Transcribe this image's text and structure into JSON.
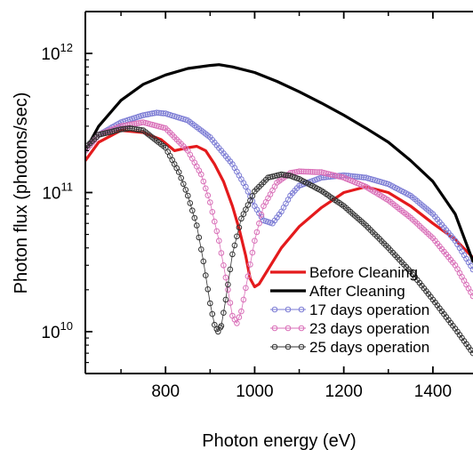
{
  "chart_data": {
    "type": "line",
    "title": "",
    "xlabel": "Photon energy (eV)",
    "ylabel": "Photon flux (photons/sec)",
    "xlim": [
      620,
      1490
    ],
    "ylim": [
      5000000000,
      2000000000000
    ],
    "yscale": "log",
    "grid": false,
    "legend_position": "bottom-right",
    "x_ticks": [
      800,
      1000,
      1200,
      1400
    ],
    "x_tick_labels": [
      "800",
      "1000",
      "1200",
      "1400"
    ],
    "y_ticks": [
      10000000000,
      100000000000,
      1000000000000
    ],
    "y_tick_labels": [
      {
        "base": "10",
        "exp": "10"
      },
      {
        "base": "10",
        "exp": "11"
      },
      {
        "base": "10",
        "exp": "12"
      }
    ],
    "series": [
      {
        "name": "Before Cleaning",
        "style": "line",
        "color": "#e41a1c",
        "x": [
          620,
          650,
          700,
          750,
          790,
          820,
          850,
          870,
          890,
          910,
          930,
          950,
          965,
          980,
          990,
          1000,
          1010,
          1030,
          1060,
          1100,
          1150,
          1200,
          1250,
          1300,
          1350,
          1400,
          1450,
          1490
        ],
        "y": [
          170000000000.0,
          230000000000.0,
          280000000000.0,
          270000000000.0,
          240000000000.0,
          200000000000.0,
          210000000000.0,
          215000000000.0,
          200000000000.0,
          160000000000.0,
          120000000000.0,
          80000000000.0,
          55000000000.0,
          35000000000.0,
          24000000000.0,
          21000000000.0,
          22000000000.0,
          28000000000.0,
          40000000000.0,
          57000000000.0,
          78000000000.0,
          100000000000.0,
          110000000000.0,
          100000000000.0,
          80000000000.0,
          60000000000.0,
          46000000000.0,
          34000000000.0
        ]
      },
      {
        "name": "After Cleaning",
        "style": "line",
        "color": "#000000",
        "x": [
          620,
          650,
          700,
          750,
          800,
          850,
          900,
          920,
          950,
          1000,
          1050,
          1100,
          1150,
          1200,
          1250,
          1300,
          1350,
          1400,
          1450,
          1490
        ],
        "y": [
          200000000000.0,
          300000000000.0,
          460000000000.0,
          600000000000.0,
          700000000000.0,
          780000000000.0,
          820000000000.0,
          830000000000.0,
          800000000000.0,
          730000000000.0,
          630000000000.0,
          530000000000.0,
          440000000000.0,
          360000000000.0,
          290000000000.0,
          230000000000.0,
          170000000000.0,
          120000000000.0,
          70000000000.0,
          32000000000.0
        ]
      },
      {
        "name": "17 days operation",
        "style": "markers",
        "color": "#7b7bd4",
        "x": [
          620,
          650,
          700,
          750,
          780,
          800,
          850,
          900,
          950,
          980,
          1000,
          1020,
          1040,
          1060,
          1080,
          1100,
          1150,
          1200,
          1250,
          1300,
          1350,
          1400,
          1450,
          1490
        ],
        "y": [
          200000000000.0,
          260000000000.0,
          320000000000.0,
          360000000000.0,
          375000000000.0,
          370000000000.0,
          330000000000.0,
          250000000000.0,
          160000000000.0,
          110000000000.0,
          80000000000.0,
          63000000000.0,
          60000000000.0,
          73000000000.0,
          95000000000.0,
          112000000000.0,
          128000000000.0,
          133000000000.0,
          128000000000.0,
          115000000000.0,
          95000000000.0,
          70000000000.0,
          45000000000.0,
          28000000000.0
        ]
      },
      {
        "name": "23 days operation",
        "style": "markers",
        "color": "#d96fb8",
        "x": [
          620,
          650,
          700,
          750,
          800,
          850,
          880,
          900,
          920,
          940,
          950,
          960,
          970,
          985,
          1000,
          1020,
          1050,
          1080,
          1100,
          1150,
          1200,
          1250,
          1300,
          1350,
          1400,
          1450,
          1490
        ],
        "y": [
          200000000000.0,
          260000000000.0,
          300000000000.0,
          320000000000.0,
          290000000000.0,
          200000000000.0,
          135000000000.0,
          85000000000.0,
          45000000000.0,
          20000000000.0,
          13000000000.0,
          11500000000.0,
          14000000000.0,
          25000000000.0,
          45000000000.0,
          80000000000.0,
          118000000000.0,
          138000000000.0,
          142000000000.0,
          140000000000.0,
          128000000000.0,
          110000000000.0,
          88000000000.0,
          66000000000.0,
          47000000000.0,
          30000000000.0,
          18000000000.0
        ]
      },
      {
        "name": "25 days operation",
        "style": "markers",
        "color": "#333333",
        "x": [
          620,
          650,
          700,
          720,
          750,
          800,
          830,
          850,
          870,
          885,
          900,
          910,
          918,
          925,
          935,
          950,
          970,
          1000,
          1030,
          1060,
          1080,
          1100,
          1150,
          1200,
          1250,
          1300,
          1350,
          1400,
          1450,
          1490
        ],
        "y": [
          210000000000.0,
          260000000000.0,
          285000000000.0,
          290000000000.0,
          280000000000.0,
          210000000000.0,
          140000000000.0,
          95000000000.0,
          58000000000.0,
          32000000000.0,
          16000000000.0,
          11200000000.0,
          10000000000.0,
          11000000000.0,
          17000000000.0,
          36000000000.0,
          65000000000.0,
          102000000000.0,
          128000000000.0,
          135000000000.0,
          132000000000.0,
          125000000000.0,
          103000000000.0,
          80000000000.0,
          58000000000.0,
          40000000000.0,
          27000000000.0,
          17000000000.0,
          10500000000.0,
          7000000000.0
        ]
      }
    ]
  }
}
